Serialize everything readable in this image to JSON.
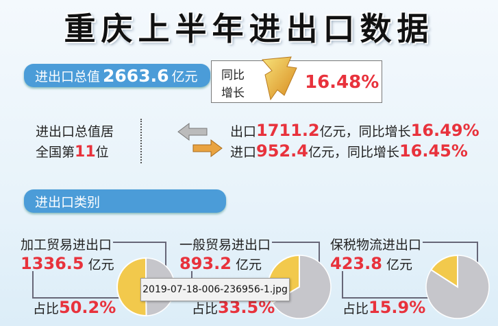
{
  "title": "重庆上半年进出口数据",
  "total": {
    "label": "进出口总值",
    "value": "2663.6",
    "unit": "亿元",
    "growth_label_1": "同比",
    "growth_label_2": "增长",
    "growth": "16.48%"
  },
  "rank": {
    "line1": "进出口总值居",
    "line2_pre": "全国第",
    "rank": "11",
    "line2_post": "位"
  },
  "export": {
    "label": "出口",
    "value": "1711.2",
    "suffix": "亿元，同比增长",
    "growth": "16.49%"
  },
  "import": {
    "label": "进口",
    "value": "952.4",
    "suffix": "亿元，同比增长",
    "growth": "16.45%"
  },
  "category_title": "进出口类别",
  "categories": [
    {
      "name": "加工贸易进出口",
      "value": "1336.5",
      "unit": "亿元",
      "share_label": "占比",
      "share": "50.2%",
      "pct": 50.2
    },
    {
      "name": "一般贸易进出口",
      "value": "893.2",
      "unit": "亿元",
      "share_label": "占比",
      "share": "33.5%",
      "pct": 33.5
    },
    {
      "name": "保税物流进出口",
      "value": "423.8",
      "unit": "亿元",
      "share_label": "占比",
      "share": "15.9%",
      "pct": 15.9
    }
  ],
  "colors": {
    "share": "#f2c94c",
    "rest": "#c6c6cb",
    "accent": "#4b9cd8",
    "red": "#e8323c"
  },
  "tooltip": "2019-07-18-006-236956-1.jpg"
}
